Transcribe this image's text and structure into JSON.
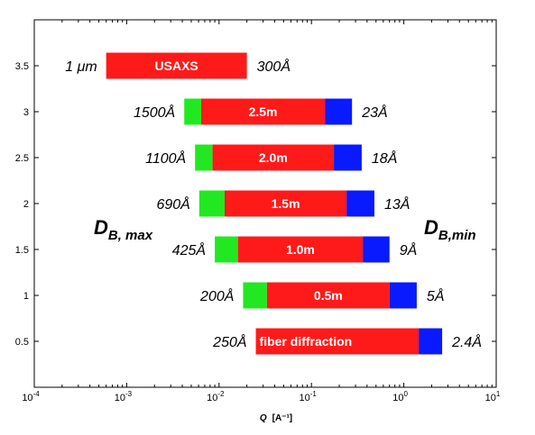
{
  "chart_data": {
    "type": "bar",
    "orientation": "horizontal",
    "x_scale": "log",
    "xlim": [
      0.0001,
      10
    ],
    "ylim": [
      0.0,
      4.0
    ],
    "xlabel": "Q  [A⁻¹]",
    "x_ticks": [
      {
        "value": 0.0001,
        "base": "10",
        "exp": "-4"
      },
      {
        "value": 0.001,
        "base": "10",
        "exp": "-3"
      },
      {
        "value": 0.01,
        "base": "10",
        "exp": "-2"
      },
      {
        "value": 0.1,
        "base": "10",
        "exp": "-1"
      },
      {
        "value": 1,
        "base": "10",
        "exp": "0"
      },
      {
        "value": 10,
        "base": "10",
        "exp": "1"
      }
    ],
    "y_ticks": [
      "0.5",
      "1",
      "1.5",
      "2",
      "2.5",
      "3",
      "3.5"
    ],
    "y_tick_values": [
      0.5,
      1,
      1.5,
      2,
      2.5,
      3,
      3.5
    ],
    "grid": false,
    "segment_colors": {
      "green": "#22e822",
      "red": "#ff1a1a",
      "blue": "#0a1aff"
    },
    "bars": [
      {
        "y": 3.5,
        "label": "USAXS",
        "left_label": "1 μm",
        "right_label": "300Å",
        "segments": [
          {
            "color": "red",
            "from": 0.0006,
            "to": 0.02
          }
        ]
      },
      {
        "y": 3.0,
        "label": "2.5m",
        "left_label": "1500Å",
        "right_label": "23Å",
        "segments": [
          {
            "color": "green",
            "from": 0.0042,
            "to": 0.0064
          },
          {
            "color": "red",
            "from": 0.0064,
            "to": 0.14
          },
          {
            "color": "blue",
            "from": 0.14,
            "to": 0.275
          }
        ]
      },
      {
        "y": 2.5,
        "label": "2.0m",
        "left_label": "1100Å",
        "right_label": "18Å",
        "segments": [
          {
            "color": "green",
            "from": 0.0055,
            "to": 0.0085
          },
          {
            "color": "red",
            "from": 0.0085,
            "to": 0.175
          },
          {
            "color": "blue",
            "from": 0.175,
            "to": 0.35
          }
        ]
      },
      {
        "y": 2.0,
        "label": "1.5m",
        "left_label": "690Å",
        "right_label": "13Å",
        "segments": [
          {
            "color": "green",
            "from": 0.0061,
            "to": 0.0115
          },
          {
            "color": "red",
            "from": 0.0115,
            "to": 0.24
          },
          {
            "color": "blue",
            "from": 0.24,
            "to": 0.48
          }
        ]
      },
      {
        "y": 1.5,
        "label": "1.0m",
        "left_label": "425Å",
        "right_label": "9Å",
        "segments": [
          {
            "color": "green",
            "from": 0.009,
            "to": 0.016
          },
          {
            "color": "red",
            "from": 0.016,
            "to": 0.36
          },
          {
            "color": "blue",
            "from": 0.36,
            "to": 0.7
          }
        ]
      },
      {
        "y": 1.0,
        "label": "0.5m",
        "left_label": "200Å",
        "right_label": "5Å",
        "segments": [
          {
            "color": "green",
            "from": 0.0182,
            "to": 0.033
          },
          {
            "color": "red",
            "from": 0.033,
            "to": 0.7
          },
          {
            "color": "blue",
            "from": 0.7,
            "to": 1.38
          }
        ]
      },
      {
        "y": 0.5,
        "label": "fiber diffraction",
        "left_label": "250Å",
        "right_label": "2.4Å",
        "segments": [
          {
            "color": "red",
            "from": 0.025,
            "to": 1.45
          },
          {
            "color": "blue",
            "from": 1.45,
            "to": 2.6
          }
        ]
      }
    ],
    "annotations": {
      "d_max": {
        "main": "D",
        "sub": "B, max"
      },
      "d_min": {
        "main": "D",
        "sub": "B,min"
      }
    }
  }
}
